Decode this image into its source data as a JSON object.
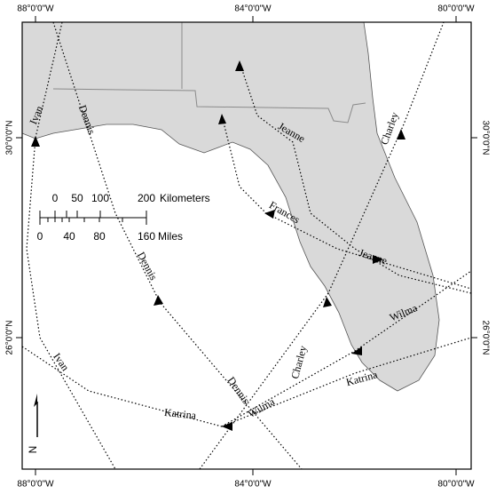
{
  "graticule": {
    "top": [
      "88°0'0\"W",
      "84°0'0\"W",
      "80°0'0\"W"
    ],
    "bottom": [
      "88°0'0\"W",
      "84°0'0\"W",
      "80°0'0\"W"
    ],
    "left": [
      "30°0'0\"N",
      "26°0'0\"N"
    ],
    "right": [
      "30°0'0\"N",
      "26°0'0\"N"
    ]
  },
  "scale_bar": {
    "kilometers": {
      "ticks": [
        0,
        50,
        100,
        200
      ],
      "unit": "Kilometers"
    },
    "miles": {
      "ticks": [
        0,
        40,
        80,
        160
      ],
      "unit": "Miles"
    }
  },
  "north_arrow": "N",
  "track_labels": [
    "Ivan",
    "Ivan",
    "Dennis",
    "Dennis",
    "Dennis",
    "Jeanne",
    "Jeanne",
    "Charley",
    "Charley",
    "Frances",
    "Wilma",
    "Wilma",
    "Katrina",
    "Katrina"
  ]
}
